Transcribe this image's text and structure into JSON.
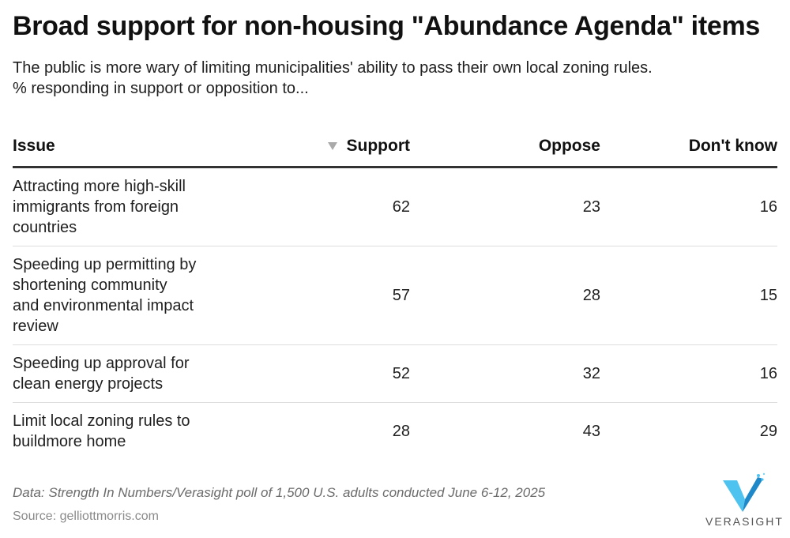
{
  "title": "Broad support for non-housing \"Abundance Agenda\" items",
  "subtitle_lines": [
    "The public is more wary of limiting municipalities' ability to pass their own local zoning rules.",
    "% responding in support or opposition to..."
  ],
  "chart_data": {
    "type": "table",
    "columns": [
      "Issue",
      "Support",
      "Oppose",
      "Don't know"
    ],
    "sorted_by": "Support",
    "sort_order": "descending",
    "rows": [
      {
        "issue_lines": [
          "Attracting more high-skill",
          "immigrants from foreign",
          "countries"
        ],
        "support": 62,
        "oppose": 23,
        "dont_know": 16
      },
      {
        "issue_lines": [
          "Speeding up permitting by",
          "shortening community",
          "and environmental impact",
          "review"
        ],
        "support": 57,
        "oppose": 28,
        "dont_know": 15
      },
      {
        "issue_lines": [
          "Speeding up approval for",
          "clean energy projects"
        ],
        "support": 52,
        "oppose": 32,
        "dont_know": 16
      },
      {
        "issue_lines": [
          "Limit local zoning rules to",
          "buildmore home"
        ],
        "support": 28,
        "oppose": 43,
        "dont_know": 29
      }
    ]
  },
  "notes": "Data: Strength In Numbers/Verasight poll of 1,500 U.S. adults conducted June 6-12, 2025",
  "source": "Source: gelliottmorris.com",
  "logo": {
    "text": "VERASIGHT",
    "icon": "verasight-v-logo-icon",
    "color_light": "#4fc3ef",
    "color_dark": "#1e88c8"
  },
  "colors": {
    "text": "#1a1a1a",
    "header_rule": "#333333",
    "row_divider": "#dddddd",
    "sort_arrow": "#aaaaaa"
  }
}
